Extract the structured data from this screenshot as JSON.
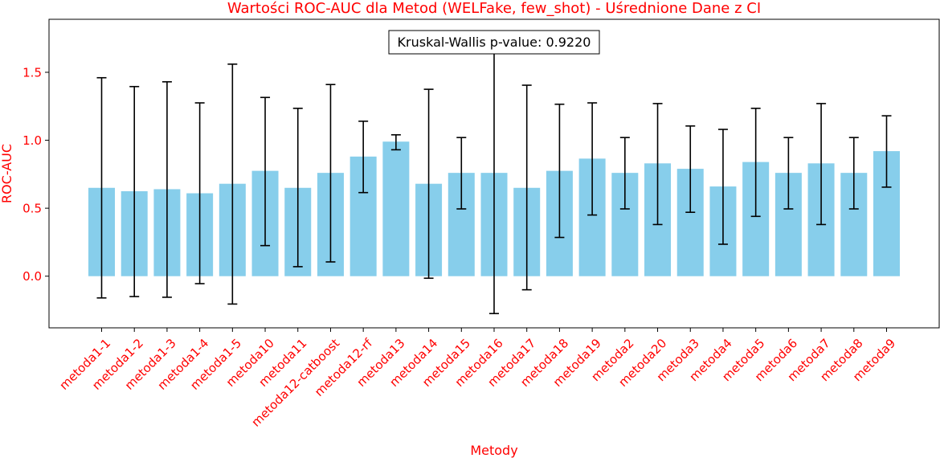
{
  "chart_data": {
    "type": "bar",
    "title": "Wartości ROC-AUC dla Metod (WELFake, few_shot) - Uśrednione Dane z CI",
    "xlabel": "Metody",
    "ylabel": "ROC-AUC",
    "annotation": "Kruskal-Wallis p-value: 0.9220",
    "ylim": [
      -0.38,
      1.89
    ],
    "yticks": [
      0.0,
      0.5,
      1.0,
      1.5
    ],
    "ytick_labels": [
      "0.0",
      "0.5",
      "1.0",
      "1.5"
    ],
    "grid": false,
    "colors": {
      "bar": "#87ceeb",
      "error": "#000000",
      "text": "#ff0000"
    },
    "categories": [
      "metoda1-1",
      "metoda1-2",
      "metoda1-3",
      "metoda1-4",
      "metoda1-5",
      "metoda10",
      "metoda11",
      "metoda12-catboost",
      "metoda12-rf",
      "metoda13",
      "metoda14",
      "metoda15",
      "metoda16",
      "metoda17",
      "metoda18",
      "metoda19",
      "metoda2",
      "metoda20",
      "metoda3",
      "metoda4",
      "metoda5",
      "metoda6",
      "metoda7",
      "metoda8",
      "metoda9"
    ],
    "values": [
      0.65,
      0.625,
      0.64,
      0.61,
      0.68,
      0.775,
      0.65,
      0.76,
      0.88,
      0.99,
      0.68,
      0.76,
      0.76,
      0.65,
      0.775,
      0.865,
      0.76,
      0.83,
      0.79,
      0.66,
      0.84,
      0.76,
      0.83,
      0.76,
      0.92
    ],
    "ci_lower": [
      -0.16,
      -0.15,
      -0.155,
      -0.055,
      -0.205,
      0.225,
      0.07,
      0.105,
      0.615,
      0.93,
      -0.015,
      0.495,
      -0.275,
      -0.1,
      0.285,
      0.45,
      0.495,
      0.38,
      0.47,
      0.235,
      0.44,
      0.495,
      0.38,
      0.495,
      0.655
    ],
    "ci_upper": [
      1.46,
      1.395,
      1.43,
      1.275,
      1.56,
      1.315,
      1.235,
      1.41,
      1.14,
      1.04,
      1.375,
      1.02,
      1.79,
      1.405,
      1.265,
      1.275,
      1.02,
      1.27,
      1.105,
      1.08,
      1.235,
      1.02,
      1.27,
      1.02,
      1.18
    ]
  }
}
